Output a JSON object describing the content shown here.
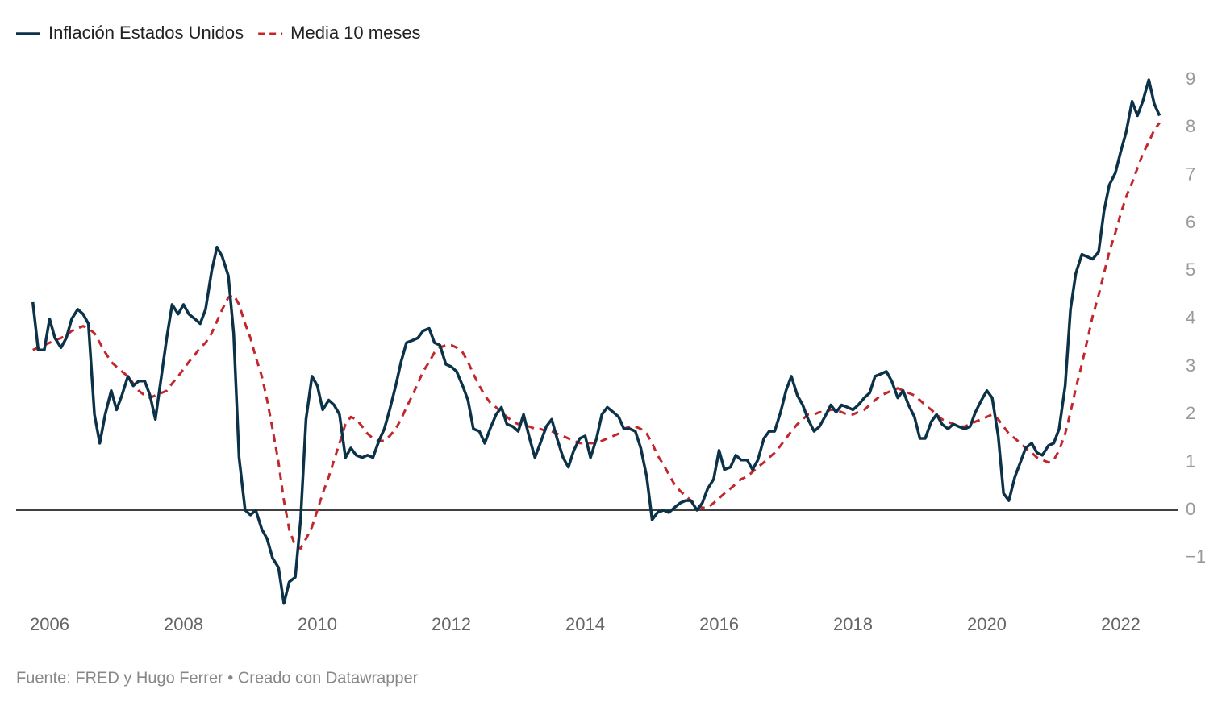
{
  "chart_data": {
    "type": "line",
    "source": "Fuente: FRED y Hugo Ferrer • Creado con Datawrapper",
    "x": [
      2005.75,
      2005.83,
      2005.92,
      2006,
      2006.08,
      2006.17,
      2006.25,
      2006.33,
      2006.42,
      2006.5,
      2006.58,
      2006.67,
      2006.75,
      2006.83,
      2006.92,
      2007,
      2007.08,
      2007.17,
      2007.25,
      2007.33,
      2007.42,
      2007.5,
      2007.58,
      2007.67,
      2007.75,
      2007.83,
      2007.92,
      2008,
      2008.08,
      2008.17,
      2008.25,
      2008.33,
      2008.42,
      2008.5,
      2008.58,
      2008.67,
      2008.75,
      2008.83,
      2008.92,
      2009,
      2009.08,
      2009.17,
      2009.25,
      2009.33,
      2009.42,
      2009.5,
      2009.58,
      2009.67,
      2009.75,
      2009.83,
      2009.92,
      2010,
      2010.08,
      2010.17,
      2010.25,
      2010.33,
      2010.42,
      2010.5,
      2010.58,
      2010.67,
      2010.75,
      2010.83,
      2010.92,
      2011,
      2011.08,
      2011.17,
      2011.25,
      2011.33,
      2011.42,
      2011.5,
      2011.58,
      2011.67,
      2011.75,
      2011.83,
      2011.92,
      2012,
      2012.08,
      2012.17,
      2012.25,
      2012.33,
      2012.42,
      2012.5,
      2012.58,
      2012.67,
      2012.75,
      2012.83,
      2012.92,
      2013,
      2013.08,
      2013.17,
      2013.25,
      2013.33,
      2013.42,
      2013.5,
      2013.58,
      2013.67,
      2013.75,
      2013.83,
      2013.92,
      2014,
      2014.08,
      2014.17,
      2014.25,
      2014.33,
      2014.42,
      2014.5,
      2014.58,
      2014.67,
      2014.75,
      2014.83,
      2014.92,
      2015,
      2015.08,
      2015.17,
      2015.25,
      2015.33,
      2015.42,
      2015.5,
      2015.58,
      2015.67,
      2015.75,
      2015.83,
      2015.92,
      2016,
      2016.08,
      2016.17,
      2016.25,
      2016.33,
      2016.42,
      2016.5,
      2016.58,
      2016.67,
      2016.75,
      2016.83,
      2016.92,
      2017,
      2017.08,
      2017.17,
      2017.25,
      2017.33,
      2017.42,
      2017.5,
      2017.58,
      2017.67,
      2017.75,
      2017.83,
      2017.92,
      2018,
      2018.08,
      2018.17,
      2018.25,
      2018.33,
      2018.42,
      2018.5,
      2018.58,
      2018.67,
      2018.75,
      2018.83,
      2018.92,
      2019,
      2019.08,
      2019.17,
      2019.25,
      2019.33,
      2019.42,
      2019.5,
      2019.58,
      2019.67,
      2019.75,
      2019.83,
      2019.92,
      2020,
      2020.08,
      2020.17,
      2020.25,
      2020.33,
      2020.42,
      2020.5,
      2020.58,
      2020.67,
      2020.75,
      2020.83,
      2020.92,
      2021,
      2021.08,
      2021.17,
      2021.25,
      2021.33,
      2021.42,
      2021.5,
      2021.58,
      2021.67,
      2021.75,
      2021.83,
      2021.92,
      2022,
      2022.08,
      2022.17,
      2022.25,
      2022.33,
      2022.42,
      2022.5,
      2022.58
    ],
    "series": [
      {
        "name": "Inflación Estados Unidos",
        "color": "#0b3249",
        "dash": false,
        "values": [
          4.35,
          3.35,
          3.35,
          4.0,
          3.6,
          3.4,
          3.6,
          4.0,
          4.2,
          4.1,
          3.9,
          2.0,
          1.4,
          2.0,
          2.5,
          2.1,
          2.4,
          2.8,
          2.6,
          2.7,
          2.7,
          2.4,
          1.9,
          2.8,
          3.6,
          4.3,
          4.1,
          4.3,
          4.1,
          4.0,
          3.9,
          4.2,
          5.0,
          5.5,
          5.3,
          4.9,
          3.7,
          1.1,
          0.0,
          -0.1,
          0.0,
          -0.4,
          -0.6,
          -1.0,
          -1.2,
          -1.95,
          -1.5,
          -1.4,
          -0.2,
          1.9,
          2.8,
          2.6,
          2.1,
          2.3,
          2.2,
          2.0,
          1.1,
          1.3,
          1.15,
          1.1,
          1.15,
          1.1,
          1.45,
          1.7,
          2.1,
          2.6,
          3.1,
          3.5,
          3.55,
          3.6,
          3.75,
          3.8,
          3.5,
          3.45,
          3.05,
          3.0,
          2.9,
          2.6,
          2.3,
          1.7,
          1.65,
          1.4,
          1.7,
          2.0,
          2.15,
          1.8,
          1.75,
          1.65,
          2.0,
          1.5,
          1.1,
          1.4,
          1.75,
          1.9,
          1.5,
          1.1,
          0.9,
          1.25,
          1.5,
          1.55,
          1.1,
          1.5,
          2.0,
          2.15,
          2.05,
          1.95,
          1.7,
          1.7,
          1.65,
          1.3,
          0.7,
          -0.2,
          -0.05,
          0.0,
          -0.05,
          0.05,
          0.15,
          0.2,
          0.2,
          0.0,
          0.15,
          0.45,
          0.65,
          1.25,
          0.85,
          0.9,
          1.15,
          1.05,
          1.05,
          0.85,
          1.05,
          1.5,
          1.65,
          1.65,
          2.05,
          2.5,
          2.8,
          2.4,
          2.2,
          1.9,
          1.65,
          1.75,
          1.95,
          2.2,
          2.05,
          2.2,
          2.15,
          2.1,
          2.2,
          2.35,
          2.45,
          2.8,
          2.85,
          2.9,
          2.7,
          2.35,
          2.5,
          2.2,
          1.95,
          1.5,
          1.5,
          1.85,
          2.0,
          1.8,
          1.7,
          1.8,
          1.75,
          1.7,
          1.75,
          2.05,
          2.3,
          2.5,
          2.35,
          1.55,
          0.35,
          0.2,
          0.7,
          1.0,
          1.3,
          1.4,
          1.2,
          1.15,
          1.35,
          1.4,
          1.7,
          2.6,
          4.2,
          4.95,
          5.35,
          5.3,
          5.25,
          5.4,
          6.25,
          6.8,
          7.05,
          7.5,
          7.9,
          8.55,
          8.25,
          8.55,
          9.0,
          8.5,
          8.25
        ]
      },
      {
        "name": "Media 10 meses",
        "color": "#c1272d",
        "dash": true,
        "values": [
          3.35,
          3.4,
          3.45,
          3.5,
          3.55,
          3.6,
          3.65,
          3.75,
          3.8,
          3.85,
          3.8,
          3.7,
          3.5,
          3.3,
          3.1,
          3.0,
          2.9,
          2.8,
          2.65,
          2.5,
          2.4,
          2.35,
          2.4,
          2.45,
          2.5,
          2.65,
          2.8,
          2.95,
          3.1,
          3.25,
          3.4,
          3.5,
          3.7,
          3.95,
          4.2,
          4.45,
          4.5,
          4.3,
          3.9,
          3.6,
          3.2,
          2.8,
          2.3,
          1.7,
          1.0,
          0.2,
          -0.4,
          -0.75,
          -0.8,
          -0.6,
          -0.35,
          0.0,
          0.35,
          0.7,
          1.05,
          1.4,
          1.8,
          1.95,
          1.9,
          1.75,
          1.6,
          1.5,
          1.45,
          1.45,
          1.55,
          1.7,
          1.9,
          2.15,
          2.4,
          2.65,
          2.9,
          3.1,
          3.3,
          3.4,
          3.45,
          3.45,
          3.4,
          3.3,
          3.1,
          2.85,
          2.6,
          2.4,
          2.25,
          2.15,
          2.05,
          1.95,
          1.85,
          1.8,
          1.75,
          1.75,
          1.7,
          1.7,
          1.65,
          1.65,
          1.6,
          1.55,
          1.5,
          1.45,
          1.4,
          1.4,
          1.4,
          1.4,
          1.45,
          1.5,
          1.55,
          1.6,
          1.7,
          1.75,
          1.75,
          1.7,
          1.6,
          1.4,
          1.15,
          0.95,
          0.75,
          0.55,
          0.4,
          0.3,
          0.2,
          0.1,
          0.05,
          0.05,
          0.15,
          0.25,
          0.35,
          0.45,
          0.55,
          0.65,
          0.7,
          0.8,
          0.9,
          1.0,
          1.1,
          1.2,
          1.35,
          1.5,
          1.65,
          1.8,
          1.9,
          2.0,
          2.0,
          2.05,
          2.05,
          2.1,
          2.1,
          2.05,
          2.0,
          2.0,
          2.05,
          2.1,
          2.2,
          2.3,
          2.4,
          2.45,
          2.5,
          2.55,
          2.5,
          2.45,
          2.4,
          2.3,
          2.2,
          2.1,
          2.0,
          1.9,
          1.85,
          1.8,
          1.75,
          1.75,
          1.8,
          1.85,
          1.9,
          1.95,
          2.0,
          1.9,
          1.75,
          1.6,
          1.5,
          1.4,
          1.3,
          1.2,
          1.1,
          1.05,
          1.0,
          1.05,
          1.25,
          1.6,
          2.05,
          2.55,
          3.05,
          3.55,
          4.05,
          4.5,
          4.95,
          5.4,
          5.8,
          6.2,
          6.55,
          6.85,
          7.15,
          7.45,
          7.7,
          7.95,
          8.1
        ]
      }
    ],
    "xlim": [
      2005.5,
      2022.85
    ],
    "xticks": [
      2006,
      2008,
      2010,
      2012,
      2014,
      2016,
      2018,
      2020,
      2022
    ],
    "ylim": [
      -2.1,
      9.3
    ],
    "yticks": [
      {
        "value": -1,
        "label": "−1"
      },
      0,
      1,
      2,
      3,
      4,
      5,
      6,
      7,
      8,
      9
    ],
    "grid": false,
    "legend": "top-left"
  }
}
